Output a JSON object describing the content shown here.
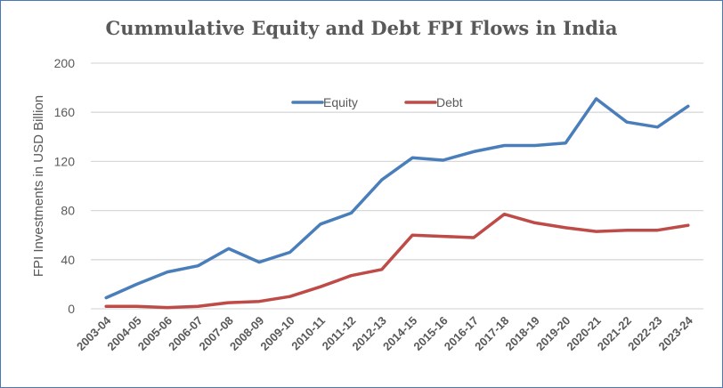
{
  "chart_data": {
    "type": "line",
    "title": "Cummulative Equity and Debt FPI Flows in India",
    "xlabel": "",
    "ylabel": "FPI Investments in USD Billion",
    "ylim": [
      0,
      200
    ],
    "yticks": [
      0,
      40,
      80,
      120,
      160,
      200
    ],
    "grid": true,
    "legend": "top-center",
    "categories": [
      "2003-04",
      "2004-05",
      "2005-06",
      "2006-07",
      "2007-08",
      "2008-09",
      "2009-10",
      "2010-11",
      "2011-12",
      "2012-13",
      "2014-15",
      "2015-16",
      "2016-17",
      "2017-18",
      "2018-19",
      "2019-20",
      "2020-21",
      "2021-22",
      "2022-23",
      "2023-24"
    ],
    "series": [
      {
        "name": "Equity",
        "color": "#4a7ebb",
        "values": [
          9,
          20,
          30,
          35,
          49,
          38,
          46,
          69,
          78,
          105,
          123,
          121,
          128,
          133,
          133,
          135,
          171,
          152,
          148,
          165
        ]
      },
      {
        "name": "Debt",
        "color": "#be4b48",
        "values": [
          2,
          2,
          1,
          2,
          5,
          6,
          10,
          18,
          27,
          32,
          60,
          59,
          58,
          77,
          70,
          66,
          63,
          64,
          64,
          68
        ]
      }
    ]
  }
}
